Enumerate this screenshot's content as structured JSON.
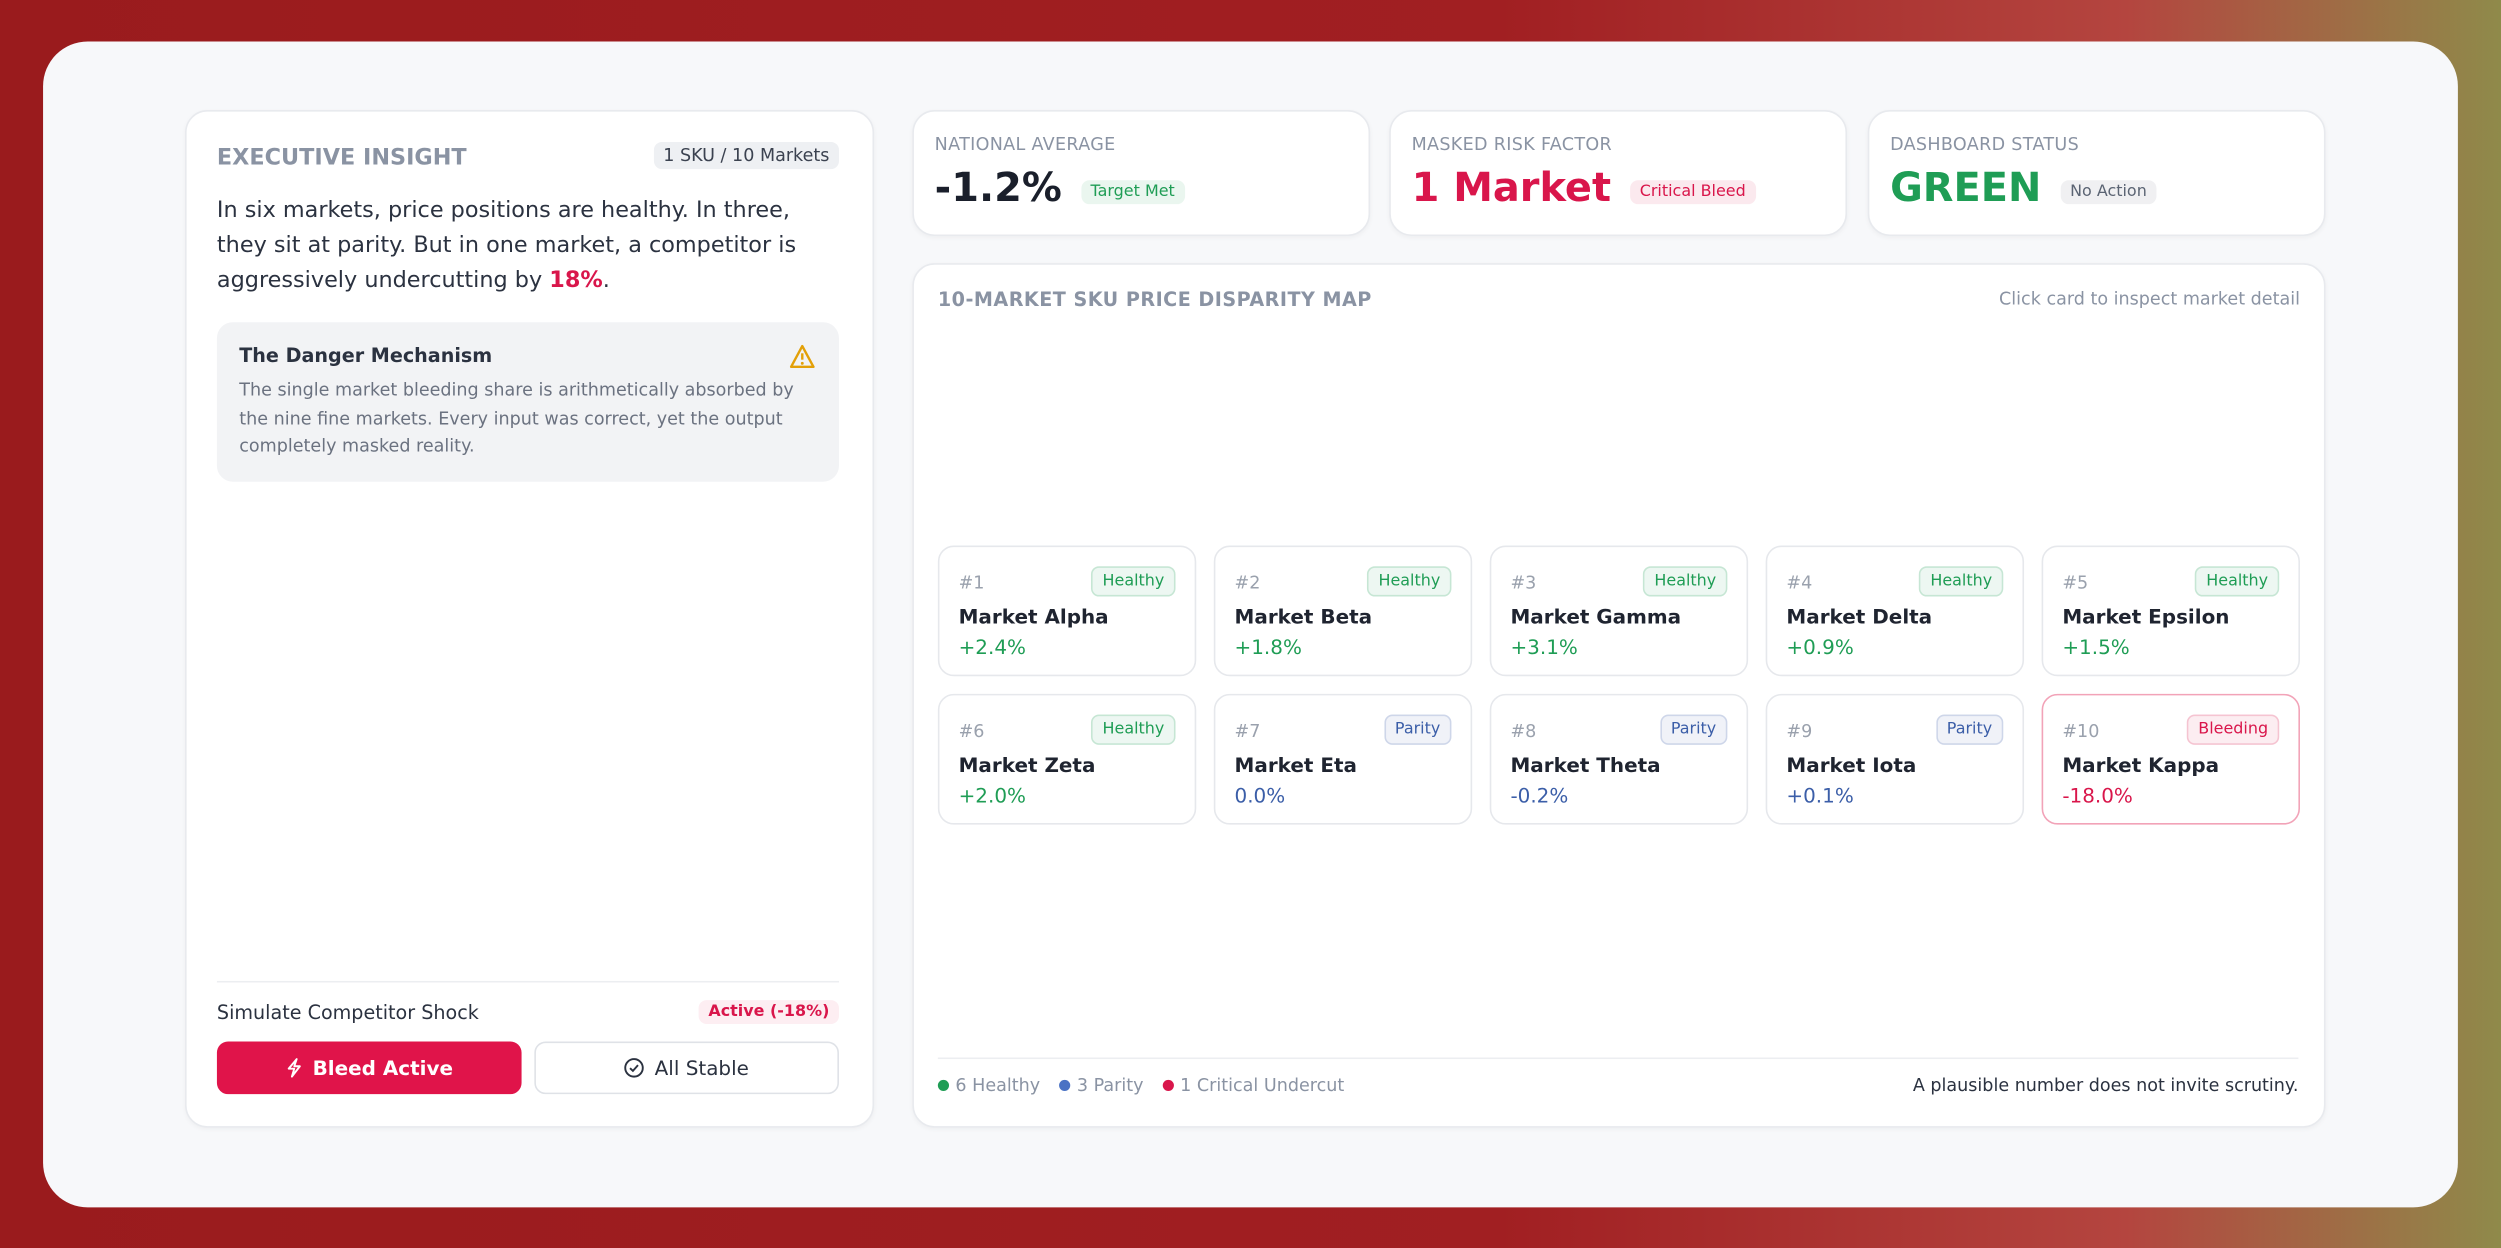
{
  "left_panel": {
    "title": "EXECUTIVE INSIGHT",
    "badge": "1 SKU / 10 Markets",
    "text_before": "In six markets, price positions are healthy. In three, they sit at parity. But in one market, a competitor is aggressively undercutting by ",
    "highlight": "18%",
    "text_after": ".",
    "callout": {
      "title": "The Danger Mechanism",
      "text": "The single market bleeding share is arithmetically absorbed by the nine fine markets. Every input was correct, yet the output completely masked reality."
    },
    "shock": {
      "label": "Simulate Competitor Shock",
      "status": "Active (-18%)",
      "buttons": [
        "Bleed Active",
        "All Stable"
      ]
    }
  },
  "kpis": [
    {
      "label": "NATIONAL AVERAGE",
      "value": "-1.2%",
      "tag": "Target Met",
      "color": "#1a1f2b",
      "tag_color": "#1f9d55"
    },
    {
      "label": "MASKED RISK FACTOR",
      "value": "1 Market",
      "tag": "Critical Bleed",
      "color": "#d9164b",
      "tag_color": "#d9164b"
    },
    {
      "label": "DASHBOARD STATUS",
      "value": "GREEN",
      "tag": "No Action",
      "color": "#1f9d55",
      "tag_color": "#5b6473"
    }
  ],
  "map": {
    "title": "10-MARKET SKU PRICE DISPARITY MAP",
    "hint": "Click card to inspect market detail",
    "markets": [
      {
        "rank": "#1",
        "status": "Healthy",
        "name": "Market Alpha",
        "change": "+2.4%",
        "color": "#1f9d55",
        "border_color": "#e6e8ec"
      },
      {
        "rank": "#2",
        "status": "Healthy",
        "name": "Market Beta",
        "change": "+1.8%",
        "color": "#1f9d55",
        "border_color": "#e6e8ec"
      },
      {
        "rank": "#3",
        "status": "Healthy",
        "name": "Market Gamma",
        "change": "+3.1%",
        "color": "#1f9d55",
        "border_color": "#e6e8ec"
      },
      {
        "rank": "#4",
        "status": "Healthy",
        "name": "Market Delta",
        "change": "+0.9%",
        "color": "#1f9d55",
        "border_color": "#e6e8ec"
      },
      {
        "rank": "#5",
        "status": "Healthy",
        "name": "Market Epsilon",
        "change": "+1.5%",
        "color": "#1f9d55",
        "border_color": "#e6e8ec"
      },
      {
        "rank": "#6",
        "status": "Healthy",
        "name": "Market Zeta",
        "change": "+2.0%",
        "color": "#1f9d55",
        "border_color": "#e6e8ec"
      },
      {
        "rank": "#7",
        "status": "Parity",
        "name": "Market Eta",
        "change": "0.0%",
        "color": "#3b5ea8",
        "border_color": "#e6e8ec"
      },
      {
        "rank": "#8",
        "status": "Parity",
        "name": "Market Theta",
        "change": "-0.2%",
        "color": "#3b5ea8",
        "border_color": "#e6e8ec"
      },
      {
        "rank": "#9",
        "status": "Parity",
        "name": "Market Iota",
        "change": "+0.1%",
        "color": "#3b5ea8",
        "border_color": "#e6e8ec"
      },
      {
        "rank": "#10",
        "status": "Bleeding",
        "name": "Market Kappa",
        "change": "-18.0%",
        "color": "#d9164b",
        "border_color": "#f2a3b8"
      }
    ],
    "legend": [
      {
        "label": "6 Healthy",
        "color": "#1f9d55"
      },
      {
        "label": "3 Parity",
        "color": "#4a72c4"
      },
      {
        "label": "1 Critical Undercut",
        "color": "#d9164b"
      }
    ],
    "footnote": "A plausible number does not invite scrutiny."
  }
}
